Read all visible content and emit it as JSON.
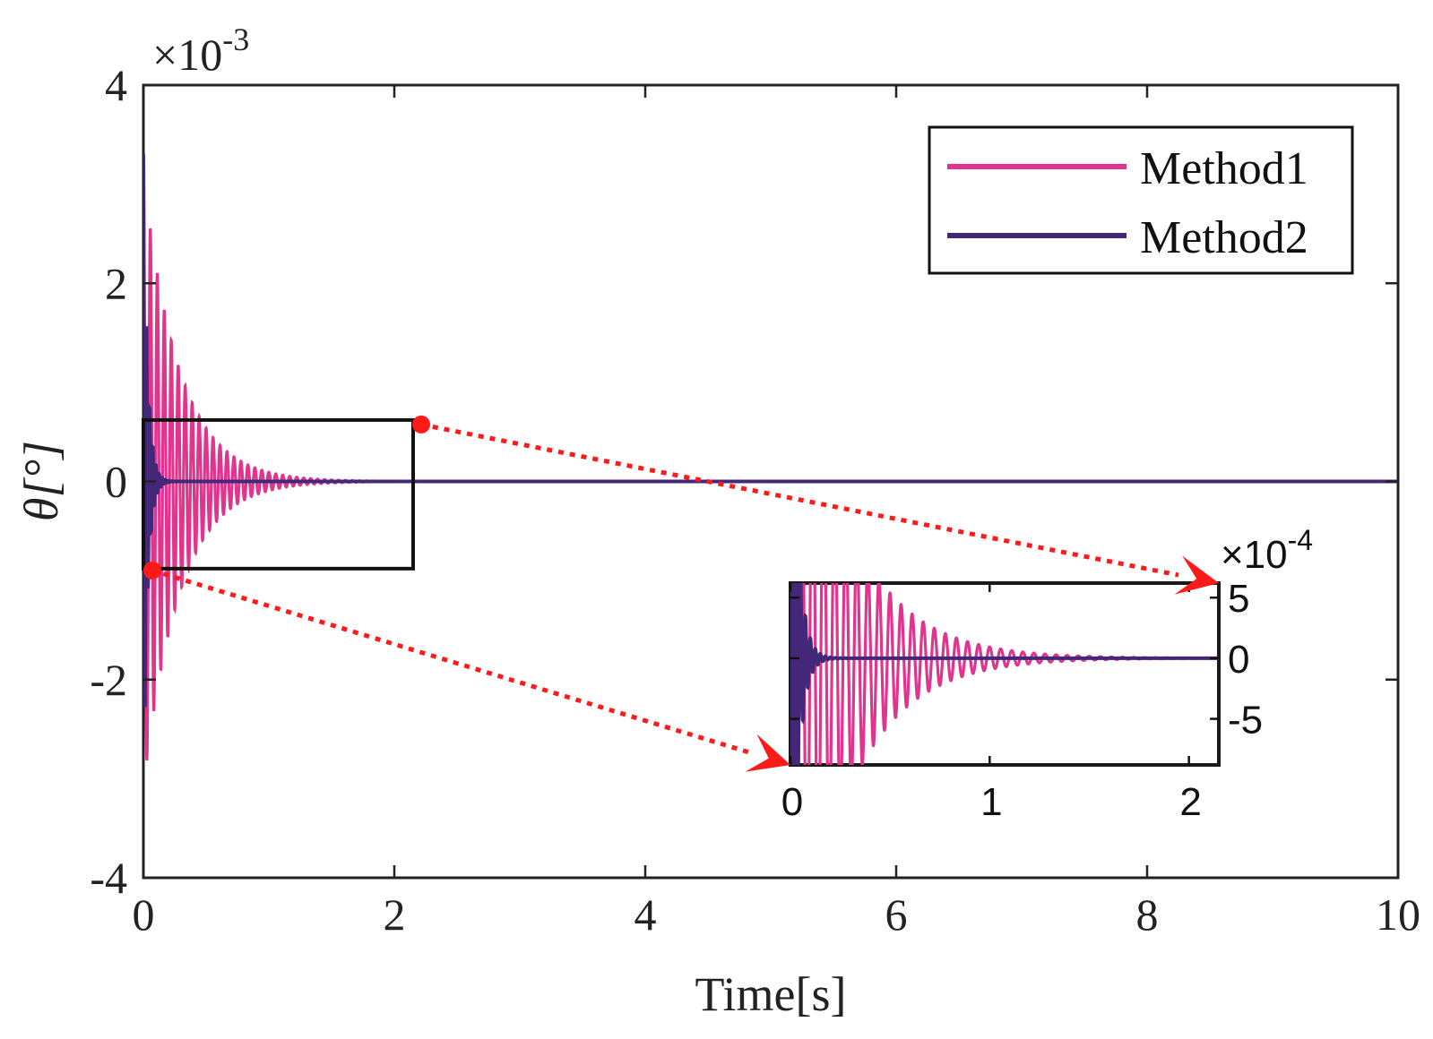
{
  "chart_data": {
    "type": "line",
    "title": "",
    "xlabel": "Time[s]",
    "ylabel": "θ[°]",
    "xlim": [
      0,
      10
    ],
    "ylim": [
      -0.004,
      0.004
    ],
    "y_exponent_label": "×10-3",
    "y_exponent_base": "×10",
    "y_exponent_power": "-3",
    "x_ticks": [
      0,
      2,
      4,
      6,
      8,
      10
    ],
    "x_tick_labels": [
      "0",
      "2",
      "4",
      "6",
      "8",
      "10"
    ],
    "y_ticks": [
      -0.004,
      -0.002,
      0,
      0.002,
      0.004
    ],
    "y_tick_labels": [
      "-4",
      "-2",
      "0",
      "2",
      "4"
    ],
    "grid": false,
    "legend_position": "top-right",
    "series": [
      {
        "name": "Method1",
        "color": "#e0348f",
        "amplitude": 0.0031,
        "decay_rate": 3.5,
        "frequency_hz": 18,
        "description": "decaying oscillation"
      },
      {
        "name": "Method2",
        "color": "#43287a",
        "amplitude": 0.0033,
        "decay_rate": 30,
        "frequency_hz": 40,
        "description": "fast-decaying oscillation"
      }
    ],
    "zoom_region": {
      "x_range": [
        0,
        2.15
      ],
      "y_range": [
        -0.00088,
        0.00062
      ]
    },
    "inset": {
      "xlim": [
        0,
        2.15
      ],
      "ylim": [
        -0.00088,
        0.00062
      ],
      "y_exponent_label": "×10-4",
      "y_exponent_base": "×10",
      "y_exponent_power": "-4",
      "x_ticks": [
        0,
        1,
        2
      ],
      "x_tick_labels": [
        "0",
        "1",
        "2"
      ],
      "y_ticks": [
        -0.0005,
        0,
        0.0005
      ],
      "y_tick_labels": [
        "-5",
        "0",
        "5"
      ],
      "y_axis_side": "right"
    },
    "annotation_color": "#ff1a1a"
  }
}
